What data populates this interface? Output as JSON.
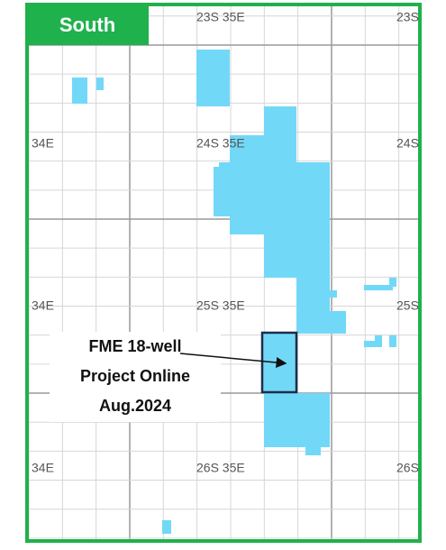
{
  "map": {
    "title": "South",
    "grid_labels": [
      "23S 35E",
      "23S",
      "34E",
      "24S 35E",
      "24S",
      "34E",
      "25S 35E",
      "25S",
      "34E",
      "26S 35E",
      "26S"
    ],
    "annotation": {
      "lines": [
        "FME 18-well",
        "Project Online",
        "Aug.2024"
      ]
    }
  }
}
